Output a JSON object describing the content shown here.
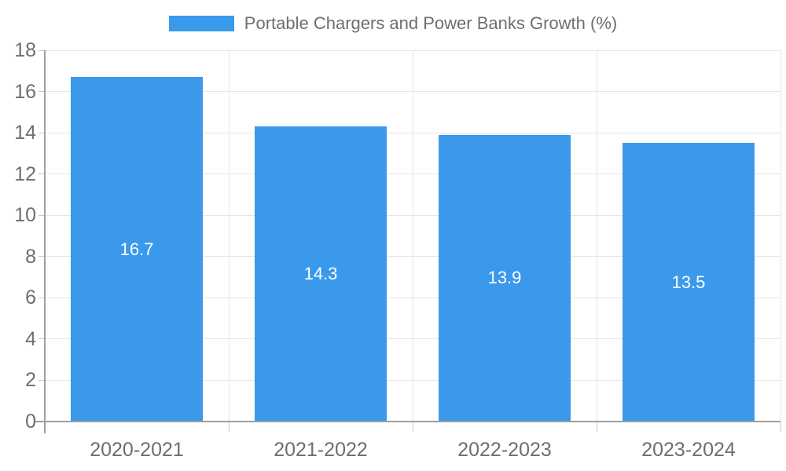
{
  "legend": {
    "label": "Portable Chargers and Power Banks Growth (%)"
  },
  "chart_data": {
    "type": "bar",
    "title": "Portable Chargers and Power Banks Growth (%)",
    "categories": [
      "2020-2021",
      "2021-2022",
      "2022-2023",
      "2023-2024"
    ],
    "values": [
      16.7,
      14.3,
      13.9,
      13.5
    ],
    "value_labels": [
      "16.7",
      "14.3",
      "13.9",
      "13.5"
    ],
    "xlabel": "",
    "ylabel": "",
    "ylim": [
      0,
      18
    ],
    "yticks": [
      0,
      2,
      4,
      6,
      8,
      10,
      12,
      14,
      16,
      18
    ],
    "grid": true,
    "legend_position": "top",
    "bar_color": "#3B99EC",
    "value_label_color": "#FFFFFF"
  },
  "colors": {
    "background": "#FFFFFF",
    "bar": "#3B99EC",
    "axis_text": "#6E6E6E",
    "legend_text": "#6E6E6E",
    "axis_line": "#9E9E9E",
    "gridline": "#E5E5E5",
    "tick": "#C9C9C9"
  }
}
